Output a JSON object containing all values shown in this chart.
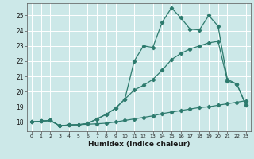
{
  "xlabel": "Humidex (Indice chaleur)",
  "ylabel": "",
  "bg_color": "#cce8e8",
  "grid_color": "#ffffff",
  "line_color": "#2e7b6e",
  "xlim": [
    -0.5,
    23.5
  ],
  "ylim": [
    17.4,
    25.8
  ],
  "xticks": [
    0,
    1,
    2,
    3,
    4,
    5,
    6,
    7,
    8,
    9,
    10,
    11,
    12,
    13,
    14,
    15,
    16,
    17,
    18,
    19,
    20,
    21,
    22,
    23
  ],
  "yticks": [
    18,
    19,
    20,
    21,
    22,
    23,
    24,
    25
  ],
  "curve_flat_x": [
    0,
    1,
    2,
    3,
    4,
    5,
    6,
    7,
    8,
    9,
    10,
    11,
    12,
    13,
    14,
    15,
    16,
    17,
    18,
    19,
    20,
    21,
    22,
    23
  ],
  "curve_flat_y": [
    18.0,
    18.05,
    18.1,
    17.75,
    17.8,
    17.82,
    17.85,
    17.88,
    17.92,
    18.0,
    18.1,
    18.2,
    18.3,
    18.4,
    18.55,
    18.65,
    18.75,
    18.85,
    18.95,
    19.0,
    19.1,
    19.2,
    19.3,
    19.4
  ],
  "curve_mid_x": [
    0,
    1,
    2,
    3,
    4,
    5,
    6,
    7,
    8,
    9,
    10,
    11,
    12,
    13,
    14,
    15,
    16,
    17,
    18,
    19,
    20,
    21,
    22,
    23
  ],
  "curve_mid_y": [
    18.0,
    18.05,
    18.1,
    17.75,
    17.8,
    17.82,
    17.9,
    18.2,
    18.5,
    18.9,
    19.5,
    20.1,
    20.4,
    20.8,
    21.4,
    22.1,
    22.5,
    22.8,
    23.0,
    23.2,
    23.3,
    20.7,
    20.5,
    19.1
  ],
  "curve_top_x": [
    0,
    1,
    2,
    3,
    4,
    5,
    6,
    7,
    8,
    9,
    10,
    11,
    12,
    13,
    14,
    15,
    16,
    17,
    18,
    19,
    20,
    21,
    22,
    23
  ],
  "curve_top_y": [
    18.0,
    18.05,
    18.1,
    17.75,
    17.8,
    17.82,
    17.9,
    18.2,
    18.5,
    18.9,
    19.5,
    22.0,
    23.0,
    22.9,
    24.55,
    25.5,
    24.85,
    24.1,
    24.05,
    25.0,
    24.3,
    20.8,
    20.5,
    19.1
  ],
  "marker": "D",
  "markersize": 2.2,
  "linewidth": 0.9
}
